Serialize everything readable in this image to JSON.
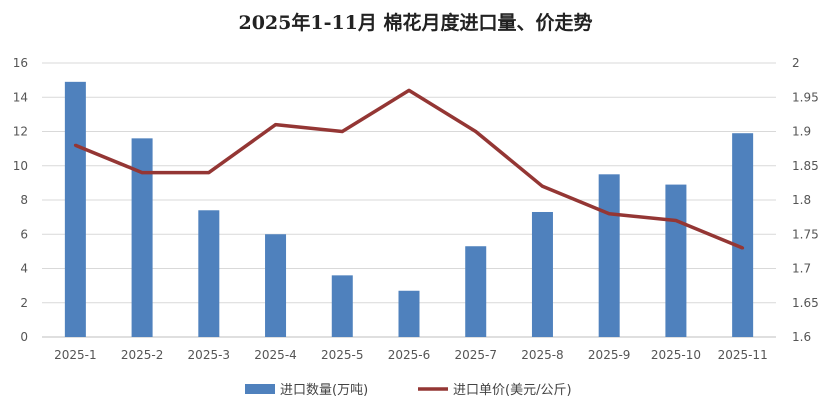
{
  "chart_data": {
    "type": "bar",
    "title": "2025年1-11月 棉花月度进口量、价走势",
    "categories": [
      "2025-1",
      "2025-2",
      "2025-3",
      "2025-4",
      "2025-5",
      "2025-6",
      "2025-7",
      "2025-8",
      "2025-9",
      "2025-10",
      "2025-11"
    ],
    "series": [
      {
        "name": "进口数量(万吨)",
        "type": "bar",
        "axis": "left",
        "color": "#4F81BD",
        "values": [
          14.9,
          11.6,
          7.4,
          6.0,
          3.6,
          2.7,
          5.3,
          7.3,
          9.5,
          8.9,
          11.9
        ]
      },
      {
        "name": "进口单价(美元/公斤)",
        "type": "line",
        "axis": "right",
        "color": "#943634",
        "values": [
          1.88,
          1.84,
          1.84,
          1.91,
          1.9,
          1.96,
          1.9,
          1.82,
          1.78,
          1.77,
          1.73
        ]
      }
    ],
    "y_left": {
      "min": 0,
      "max": 16,
      "ticks": [
        "0",
        "2",
        "4",
        "6",
        "8",
        "10",
        "12",
        "14",
        "16"
      ]
    },
    "y_right": {
      "min": 1.6,
      "max": 2.0,
      "ticks": [
        "1.6",
        "1.65",
        "1.7",
        "1.75",
        "1.8",
        "1.85",
        "1.9",
        "1.95",
        "2"
      ]
    },
    "grid": true,
    "legend": "bottom"
  }
}
